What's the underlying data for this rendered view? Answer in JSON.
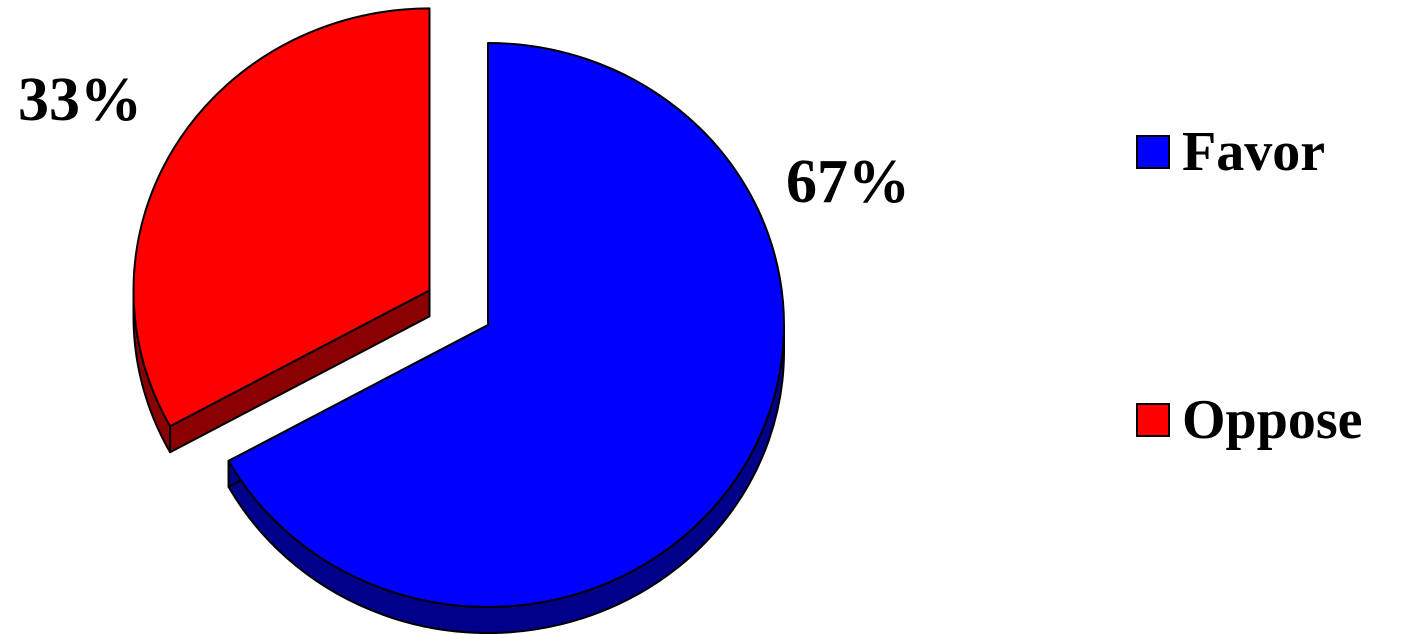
{
  "chart_data": {
    "type": "pie",
    "title": "",
    "slices": [
      {
        "name": "Favor",
        "value": 67,
        "label": "67%",
        "color": "#0000ff",
        "side_color": "#00008b",
        "exploded": false
      },
      {
        "name": "Oppose",
        "value": 33,
        "label": "33%",
        "color": "#ff0000",
        "side_color": "#8b0000",
        "exploded": true
      }
    ],
    "legend": {
      "placement": "right",
      "entries": [
        {
          "label": "Favor",
          "color": "#0000ff"
        },
        {
          "label": "Oppose",
          "color": "#ff0000"
        }
      ]
    },
    "style": "3d-exploded"
  }
}
